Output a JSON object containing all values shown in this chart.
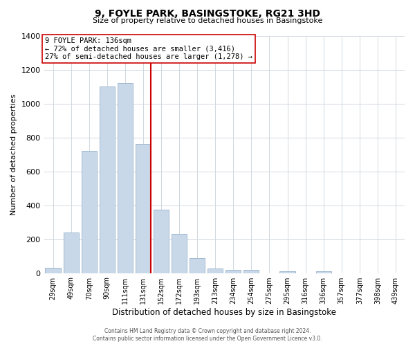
{
  "title": "9, FOYLE PARK, BASINGSTOKE, RG21 3HD",
  "subtitle": "Size of property relative to detached houses in Basingstoke",
  "xlabel": "Distribution of detached houses by size in Basingstoke",
  "ylabel": "Number of detached properties",
  "bar_labels": [
    "29sqm",
    "49sqm",
    "70sqm",
    "90sqm",
    "111sqm",
    "131sqm",
    "152sqm",
    "172sqm",
    "193sqm",
    "213sqm",
    "234sqm",
    "254sqm",
    "275sqm",
    "295sqm",
    "316sqm",
    "336sqm",
    "357sqm",
    "377sqm",
    "398sqm",
    "439sqm"
  ],
  "bar_values": [
    30,
    240,
    720,
    1100,
    1120,
    760,
    375,
    230,
    90,
    25,
    20,
    20,
    0,
    10,
    0,
    10,
    0,
    0,
    0,
    0
  ],
  "bar_color": "#c8d8e8",
  "bar_edge_color": "#a0b8d0",
  "vline_color": "#cc0000",
  "annotation_text": "9 FOYLE PARK: 136sqm\n← 72% of detached houses are smaller (3,416)\n27% of semi-detached houses are larger (1,278) →",
  "annotation_box_color": "#ffffff",
  "annotation_box_edge": "#cc0000",
  "ylim": [
    0,
    1400
  ],
  "yticks": [
    0,
    200,
    400,
    600,
    800,
    1000,
    1200,
    1400
  ],
  "footer_line1": "Contains HM Land Registry data © Crown copyright and database right 2024.",
  "footer_line2": "Contains public sector information licensed under the Open Government Licence v3.0.",
  "bg_color": "#ffffff",
  "grid_color": "#d0d8e0"
}
